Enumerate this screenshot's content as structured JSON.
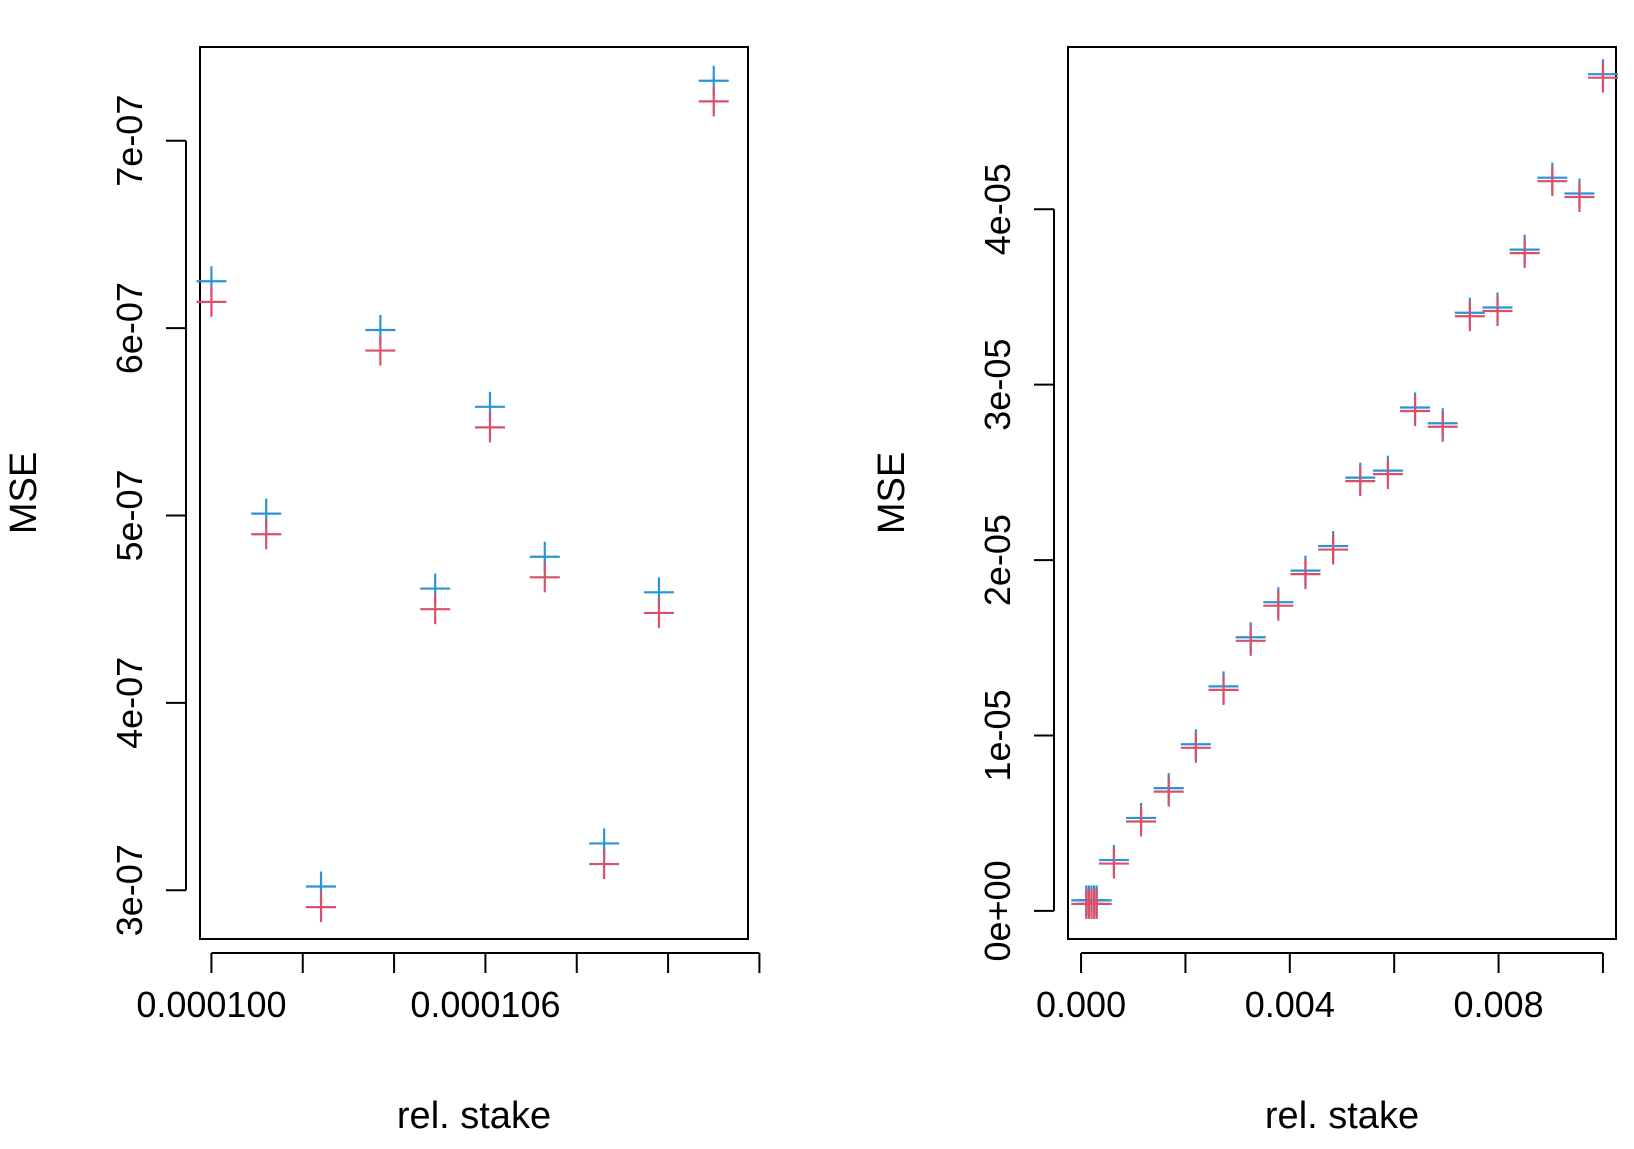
{
  "chart_data": [
    {
      "type": "scatter",
      "xlabel": "rel. stake",
      "ylabel": "MSE",
      "xlim": [
        9.975e-05,
        0.00011175
      ],
      "ylim": [
        2.74e-07,
        7.5e-07
      ],
      "x_ticks": [
        0.0001,
        0.000102,
        0.000104,
        0.000106,
        0.000108,
        0.00011,
        0.000112
      ],
      "x_tick_labels": [
        "0.000100",
        "",
        "",
        "0.000106",
        "",
        "",
        ""
      ],
      "y_ticks": [
        3e-07,
        4e-07,
        5e-07,
        6e-07,
        7e-07
      ],
      "y_tick_labels": [
        "3e-07",
        "4e-07",
        "5e-07",
        "6e-07",
        "7e-07"
      ],
      "marker": "+",
      "series": [
        {
          "color": "#2a94d6",
          "x": [
            0.0001,
            0.0001012,
            0.0001024,
            0.0001037,
            0.0001049,
            0.0001061,
            0.0001073,
            0.0001086,
            0.0001098,
            0.000111
          ],
          "y": [
            6.25e-07,
            5.01e-07,
            3.02e-07,
            5.99e-07,
            4.61e-07,
            5.58e-07,
            4.78e-07,
            3.25e-07,
            4.59e-07,
            7.32e-07
          ]
        },
        {
          "color": "#d9506a",
          "x": [
            0.0001,
            0.0001012,
            0.0001024,
            0.0001037,
            0.0001049,
            0.0001061,
            0.0001073,
            0.0001086,
            0.0001098,
            0.000111
          ],
          "y": [
            6.14e-07,
            4.9e-07,
            2.91e-07,
            5.88e-07,
            4.5e-07,
            5.47e-07,
            4.67e-07,
            3.14e-07,
            4.48e-07,
            7.21e-07
          ]
        }
      ]
    },
    {
      "type": "scatter",
      "xlabel": "rel. stake",
      "ylabel": "MSE",
      "xlim": [
        -0.00025,
        0.01025
      ],
      "ylim": [
        -1.6e-06,
        4.925e-05
      ],
      "x_ticks": [
        0.0,
        0.002,
        0.004,
        0.006,
        0.008,
        0.01
      ],
      "x_tick_labels": [
        "0.000",
        "",
        "0.004",
        "",
        "0.008",
        ""
      ],
      "y_ticks": [
        0.0,
        1e-05,
        2e-05,
        3e-05,
        4e-05
      ],
      "y_tick_labels": [
        "0e+00",
        "1e-05",
        "2e-05",
        "3e-05",
        "4e-05"
      ],
      "marker": "+",
      "series": [
        {
          "color": "#2a94d6",
          "x": [
            0.0001,
            0.00015,
            0.0002,
            0.00025,
            0.0003,
            0.00063,
            0.00115,
            0.00168,
            0.0022,
            0.00273,
            0.00325,
            0.00378,
            0.0043,
            0.00483,
            0.00535,
            0.00588,
            0.0064,
            0.00693,
            0.00745,
            0.00798,
            0.0085,
            0.00903,
            0.00955,
            0.01
          ],
          "y": [
            6e-07,
            6e-07,
            6e-07,
            6e-07,
            6e-07,
            2.9e-06,
            5.3e-06,
            7e-06,
            9.5e-06,
            1.28e-05,
            1.56e-05,
            1.76e-05,
            1.94e-05,
            2.08e-05,
            2.47e-05,
            2.51e-05,
            2.87e-05,
            2.78e-05,
            3.41e-05,
            3.44e-05,
            3.77e-05,
            4.18e-05,
            4.09e-05,
            4.77e-05
          ]
        },
        {
          "color": "#d9506a",
          "x": [
            0.0001,
            0.00015,
            0.0002,
            0.00025,
            0.0003,
            0.00063,
            0.00115,
            0.00168,
            0.0022,
            0.00273,
            0.00325,
            0.00378,
            0.0043,
            0.00483,
            0.00535,
            0.00588,
            0.0064,
            0.00693,
            0.00745,
            0.00798,
            0.0085,
            0.00903,
            0.00955,
            0.01
          ],
          "y": [
            4e-07,
            4e-07,
            4e-07,
            4e-07,
            4e-07,
            2.7e-06,
            5.1e-06,
            6.8e-06,
            9.3e-06,
            1.26e-05,
            1.54e-05,
            1.74e-05,
            1.92e-05,
            2.06e-05,
            2.45e-05,
            2.49e-05,
            2.85e-05,
            2.76e-05,
            3.39e-05,
            3.42e-05,
            3.75e-05,
            4.16e-05,
            4.07e-05,
            4.75e-05
          ]
        }
      ]
    }
  ]
}
